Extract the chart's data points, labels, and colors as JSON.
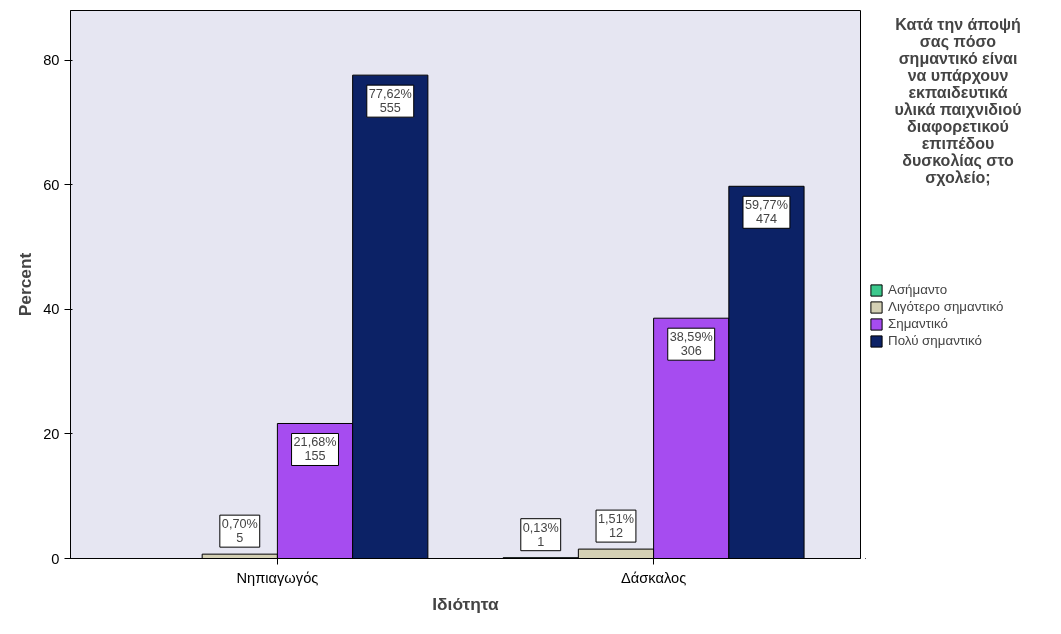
{
  "chart_data": {
    "type": "bar",
    "xlabel": "Ιδιότητα",
    "ylabel": "Percent",
    "legend_title": "Κατά την άποψή σας πόσο σημαντικό είναι να υπάρχουν εκπαιδευτικά υλικά παιχνιδιού διαφορετικού επιπέδου δυσκολίας στο σχολείο;",
    "categories": [
      "Νηπιαγωγός",
      "Δάσκαλος"
    ],
    "series": [
      {
        "name": "Ασήμαντο",
        "color": "#3cc88c",
        "values": [
          null,
          0.13
        ],
        "value_labels": [
          null,
          "0,13%\n1"
        ]
      },
      {
        "name": "Λιγότερο σημαντικό",
        "color": "#d4d0b4",
        "values": [
          0.7,
          1.51
        ],
        "value_labels": [
          "0,70%\n5",
          "1,51%\n12"
        ]
      },
      {
        "name": "Σημαντικό",
        "color": "#a64cf0",
        "values": [
          21.68,
          38.59
        ],
        "value_labels": [
          "21,68%\n155",
          "38,59%\n306"
        ]
      },
      {
        "name": "Πολύ σημαντικό",
        "color": "#0c2266",
        "values": [
          77.62,
          59.77
        ],
        "value_labels": [
          "77,62%\n555",
          "59,77%\n474"
        ]
      }
    ],
    "ylim": [
      0,
      88
    ],
    "yticks": [
      0,
      20,
      40,
      60,
      80
    ],
    "grid": false,
    "legend": "right"
  }
}
